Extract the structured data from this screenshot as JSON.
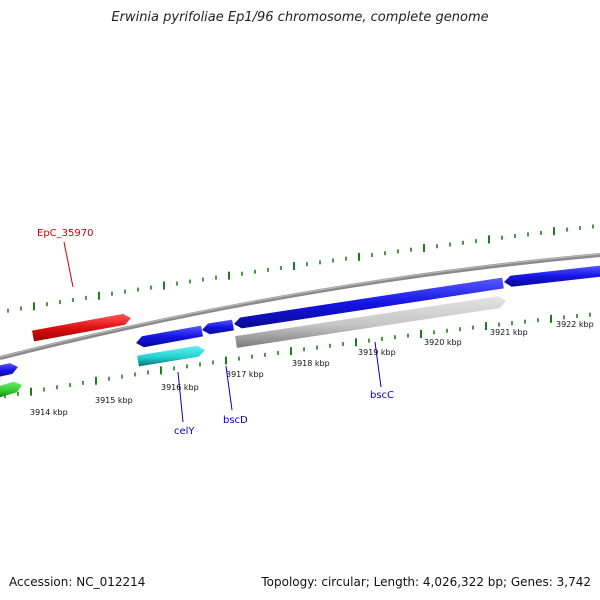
{
  "title": "Erwinia pyrifoliae Ep1/96 chromosome, complete genome",
  "footer": {
    "accession": "Accession: NC_012214",
    "summary": "Topology: circular; Length: 4,026,322 bp; Genes: 3,742"
  },
  "colors": {
    "backbone": "#8a8a8a",
    "tick": "#1e7d1e",
    "forward_gene": "#1414e6",
    "reverse_gene": "#1414e6",
    "pseudo_gene": "#c8c8c8",
    "highlight_gene": "#e01010",
    "rna_gene": "#22d2d2",
    "other_gene": "#33cc33",
    "label_red": "#cc0000",
    "label_blue": "#0000bb"
  },
  "scale": {
    "unit": "kbp",
    "tick_labels": [
      "3914 kbp",
      "3915 kbp",
      "3916 kbp",
      "3917 kbp",
      "3918 kbp",
      "3919 kbp",
      "3920 kbp",
      "3921 kbp",
      "3922 kbp"
    ]
  },
  "features": [
    {
      "name": "",
      "color": "other_gene",
      "track": "outer-lower",
      "strand": "+"
    },
    {
      "name": "",
      "color": "forward_gene",
      "track": "outer-lower",
      "strand": "+"
    },
    {
      "name": "EpC_35970",
      "color": "highlight_gene",
      "track": "upper",
      "strand": "+"
    },
    {
      "name": "celY",
      "color": "rna_gene",
      "track": "lower",
      "strand": "+"
    },
    {
      "name": "",
      "color": "forward_gene",
      "track": "middle",
      "strand": "-"
    },
    {
      "name": "bscD",
      "color": "forward_gene",
      "track": "middle",
      "strand": "-"
    },
    {
      "name": "bscC",
      "color": "pseudo_gene",
      "track": "lower",
      "strand": "+"
    },
    {
      "name": "",
      "color": "forward_gene",
      "track": "middle",
      "strand": "-"
    },
    {
      "name": "",
      "color": "forward_gene",
      "track": "middle",
      "strand": "-"
    }
  ]
}
